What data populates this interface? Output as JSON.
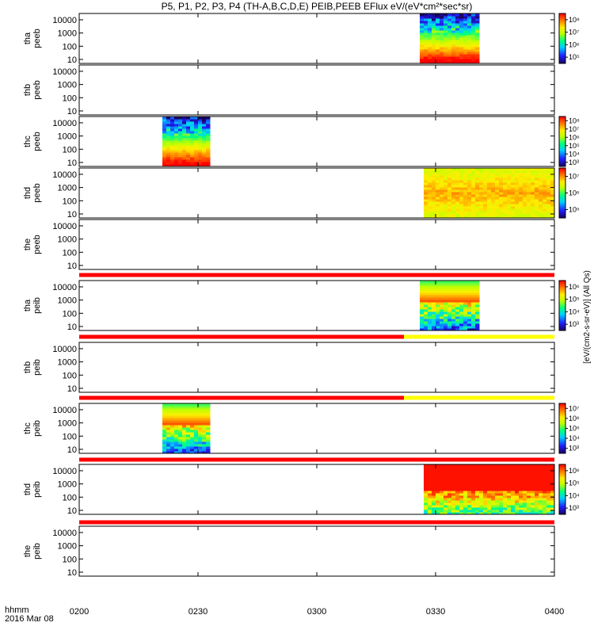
{
  "title": "P5, P1, P2, P3, P4 (TH-A,B,C,D,E) PEIB,PEEB EFlux eV/(eV*cm²*sec*sr)",
  "time_axis": {
    "caption_line1": "hhmm",
    "caption_line2": "2016 Mar 08",
    "ticks": [
      "0200",
      "0230",
      "0300",
      "0330",
      "0400"
    ]
  },
  "colorbar_label": "[eV/(cm2-s-sr-eV)] (All Qs)",
  "chart_data": {
    "type": "heatmap",
    "x_unit": "time (hhmm), 2016 Mar 08",
    "xlim": [
      "0200",
      "0400"
    ],
    "y_scale": "log",
    "ylim": [
      5,
      30000
    ],
    "y_ticks": [
      "10",
      "100",
      "1000",
      "10000"
    ],
    "panels": [
      {
        "ylabel": [
          "tha",
          "peeb"
        ],
        "data_x": [
          "0326",
          "0341"
        ],
        "colorbar": {
          "ticks": [
            "10⁵",
            "10⁶",
            "10⁷",
            "10⁸"
          ]
        }
      },
      {
        "ylabel": [
          "thb",
          "peeb"
        ],
        "data_x": null,
        "colorbar": null
      },
      {
        "ylabel": [
          "thc",
          "peeb"
        ],
        "data_x": [
          "0221",
          "0233"
        ],
        "colorbar": {
          "ticks": [
            "10³",
            "10⁴",
            "10⁵",
            "10⁶",
            "10⁷",
            "10⁸"
          ]
        }
      },
      {
        "ylabel": [
          "thd",
          "peeb"
        ],
        "data_x": [
          "0327",
          "0400"
        ],
        "colorbar": {
          "ticks": [
            "10⁵",
            "10⁶",
            "10⁷"
          ]
        }
      },
      {
        "ylabel": [
          "the",
          "peeb"
        ],
        "data_x": null,
        "colorbar": null
      },
      {
        "ylabel": [
          "tha",
          "peib"
        ],
        "data_x": [
          "0326",
          "0341"
        ],
        "colorbar": {
          "ticks": [
            "10³",
            "10⁴",
            "10⁵",
            "10⁶"
          ]
        }
      },
      {
        "ylabel": [
          "thb",
          "peib"
        ],
        "data_x": null,
        "colorbar": null
      },
      {
        "ylabel": [
          "thc",
          "peib"
        ],
        "data_x": [
          "0221",
          "0233"
        ],
        "colorbar": {
          "ticks": [
            "10³",
            "10⁴",
            "10⁵",
            "10⁶",
            "10⁷"
          ]
        }
      },
      {
        "ylabel": [
          "thd",
          "peib"
        ],
        "data_x": [
          "0327",
          "0400"
        ],
        "colorbar": {
          "ticks": [
            "10³",
            "10⁴",
            "10⁵",
            "10⁶"
          ]
        }
      },
      {
        "ylabel": [
          "the",
          "peib"
        ],
        "data_x": null,
        "colorbar": null
      }
    ],
    "bars": [
      {
        "segments": [
          {
            "from": "0200",
            "to": "0400",
            "color": "red"
          }
        ]
      },
      {
        "segments": [
          {
            "from": "0200",
            "to": "0322",
            "color": "red"
          },
          {
            "from": "0322",
            "to": "0400",
            "color": "yellow"
          }
        ]
      },
      {
        "segments": [
          {
            "from": "0200",
            "to": "0322",
            "color": "red"
          },
          {
            "from": "0322",
            "to": "0400",
            "color": "yellow"
          }
        ]
      },
      {
        "segments": [
          {
            "from": "0200",
            "to": "0400",
            "color": "red"
          }
        ]
      },
      {
        "segments": [
          {
            "from": "0200",
            "to": "0400",
            "color": "red"
          }
        ]
      }
    ]
  }
}
